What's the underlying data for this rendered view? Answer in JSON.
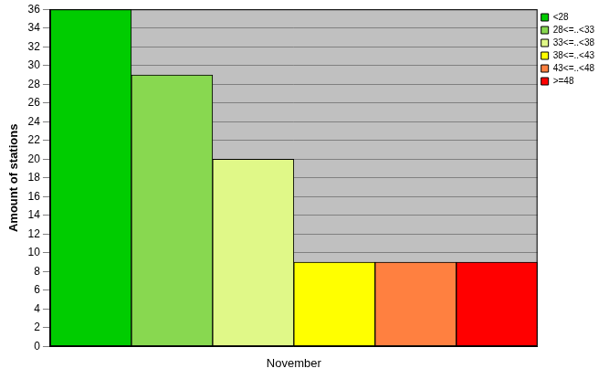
{
  "chart_data": {
    "type": "bar",
    "y_label": "Amount of stations",
    "categories": [
      "November"
    ],
    "series": [
      {
        "name": "<28",
        "color": "#00cc00",
        "values": [
          36
        ]
      },
      {
        "name": "28<=..<33",
        "color": "#88d850",
        "values": [
          29
        ]
      },
      {
        "name": "33<=..<38",
        "color": "#e0f888",
        "values": [
          20
        ]
      },
      {
        "name": "38<=..<43",
        "color": "#ffff00",
        "values": [
          9
        ]
      },
      {
        "name": "43<=..<48",
        "color": "#ff8040",
        "values": [
          9
        ]
      },
      {
        "name": ">=48",
        "color": "#ff0000",
        "values": [
          9
        ]
      }
    ],
    "ylim": [
      0,
      36
    ],
    "yticks": [
      0,
      2,
      4,
      6,
      8,
      10,
      12,
      14,
      16,
      18,
      20,
      22,
      24,
      26,
      28,
      30,
      32,
      34,
      36
    ],
    "grid": true,
    "legend": "right"
  }
}
